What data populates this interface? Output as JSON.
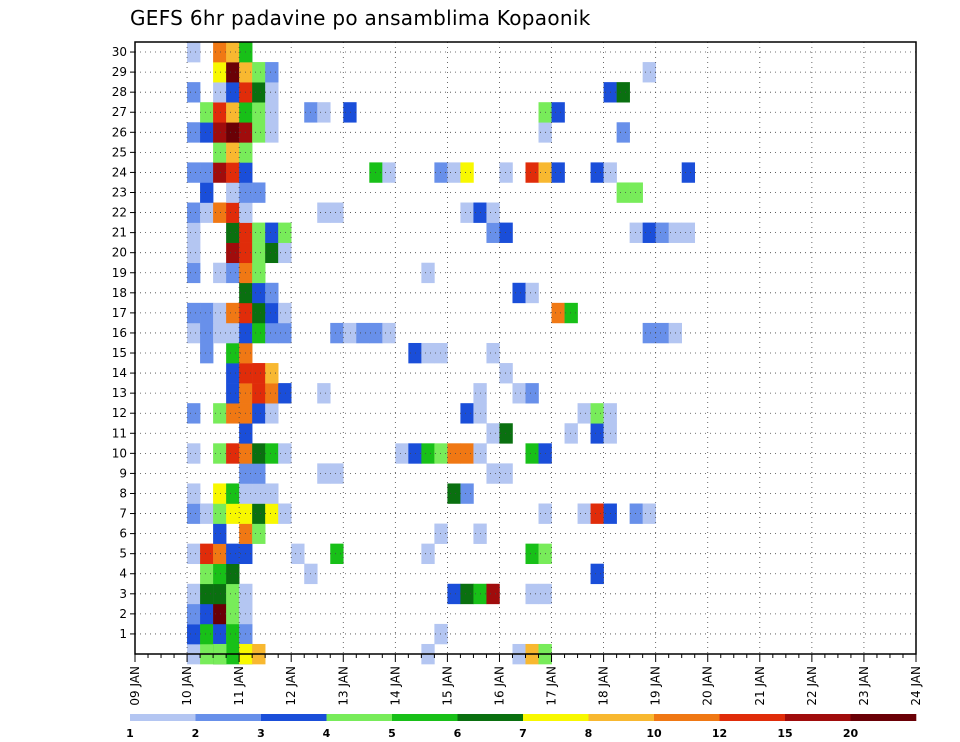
{
  "chart_data": {
    "type": "heatmap",
    "title": "GEFS 6hr padavine po ansamblima Kopaonik",
    "x_start": "09 JAN",
    "x_ticks": [
      "09 JAN",
      "10 JAN",
      "11 JAN",
      "12 JAN",
      "13 JAN",
      "14 JAN",
      "15 JAN",
      "16 JAN",
      "17 JAN",
      "18 JAN",
      "19 JAN",
      "20 JAN",
      "21 JAN",
      "22 JAN",
      "23 JAN",
      "24 JAN"
    ],
    "x_step_hours": 6,
    "y_ticks": [
      "1",
      "2",
      "3",
      "4",
      "5",
      "6",
      "7",
      "8",
      "9",
      "10",
      "11",
      "12",
      "13",
      "14",
      "15",
      "16",
      "17",
      "18",
      "19",
      "20",
      "21",
      "22",
      "23",
      "24",
      "25",
      "26",
      "27",
      "28",
      "29",
      "30"
    ],
    "ylim": [
      0,
      30
    ],
    "grid": true,
    "colorbar": {
      "position": "bottom",
      "labels": [
        "1",
        "2",
        "3",
        "4",
        "5",
        "6",
        "7",
        "8",
        "10",
        "12",
        "15",
        "20"
      ],
      "colors": [
        "#b4c6f2",
        "#6890ea",
        "#1a4ed9",
        "#78ec5a",
        "#18c018",
        "#0a7010",
        "#f8f800",
        "#f8b830",
        "#f07814",
        "#e02c0a",
        "#a00c0c",
        "#6a0006"
      ]
    },
    "cells": [
      [
        4,
        0,
        0
      ],
      [
        5,
        0,
        3
      ],
      [
        6,
        0,
        5
      ],
      [
        7,
        0,
        4
      ],
      [
        8,
        0,
        2
      ],
      [
        22,
        0,
        0
      ],
      [
        4,
        1,
        1
      ],
      [
        4,
        1,
        2
      ],
      [
        5,
        1,
        4
      ],
      [
        6,
        1,
        2
      ],
      [
        7,
        1,
        4
      ],
      [
        8,
        1,
        1
      ],
      [
        23,
        1,
        0
      ],
      [
        4,
        2,
        0
      ],
      [
        4,
        2,
        1
      ],
      [
        5,
        2,
        2
      ],
      [
        6,
        2,
        11
      ],
      [
        7,
        2,
        3
      ],
      [
        8,
        2,
        0
      ],
      [
        4,
        3,
        0
      ],
      [
        5,
        3,
        5
      ],
      [
        6,
        3,
        5
      ],
      [
        7,
        3,
        3
      ],
      [
        8,
        3,
        0
      ],
      [
        24,
        3,
        2
      ],
      [
        25,
        3,
        5
      ],
      [
        26,
        3,
        4
      ],
      [
        27,
        3,
        10
      ],
      [
        30,
        3,
        0
      ],
      [
        31,
        3,
        0
      ],
      [
        5,
        4,
        3
      ],
      [
        6,
        4,
        4
      ],
      [
        7,
        4,
        5
      ],
      [
        13,
        4,
        0
      ],
      [
        35,
        4,
        2
      ],
      [
        4,
        5,
        0
      ],
      [
        5,
        5,
        9
      ],
      [
        6,
        5,
        8
      ],
      [
        7,
        5,
        2
      ],
      [
        8,
        5,
        2
      ],
      [
        12,
        5,
        0
      ],
      [
        15,
        5,
        4
      ],
      [
        22,
        5,
        0
      ],
      [
        30,
        5,
        4
      ],
      [
        31,
        5,
        3
      ],
      [
        6,
        6,
        2
      ],
      [
        8,
        6,
        8
      ],
      [
        9,
        6,
        3
      ],
      [
        23,
        6,
        0
      ],
      [
        26,
        6,
        0
      ],
      [
        4,
        7,
        1
      ],
      [
        5,
        7,
        0
      ],
      [
        6,
        7,
        3
      ],
      [
        7,
        7,
        6
      ],
      [
        8,
        7,
        6
      ],
      [
        9,
        7,
        5
      ],
      [
        10,
        7,
        6
      ],
      [
        11,
        7,
        0
      ],
      [
        31,
        7,
        0
      ],
      [
        34,
        7,
        0
      ],
      [
        35,
        7,
        9
      ],
      [
        36,
        7,
        2
      ],
      [
        38,
        7,
        1
      ],
      [
        39,
        7,
        0
      ],
      [
        4,
        8,
        0
      ],
      [
        6,
        8,
        6
      ],
      [
        7,
        8,
        4
      ],
      [
        8,
        8,
        0
      ],
      [
        9,
        8,
        0
      ],
      [
        10,
        8,
        0
      ],
      [
        24,
        8,
        5
      ],
      [
        25,
        8,
        1
      ],
      [
        8,
        9,
        1
      ],
      [
        9,
        9,
        1
      ],
      [
        14,
        9,
        0
      ],
      [
        15,
        9,
        0
      ],
      [
        27,
        9,
        0
      ],
      [
        28,
        9,
        0
      ],
      [
        4,
        10,
        0
      ],
      [
        6,
        10,
        3
      ],
      [
        7,
        10,
        9
      ],
      [
        8,
        10,
        8
      ],
      [
        9,
        10,
        5
      ],
      [
        10,
        10,
        4
      ],
      [
        11,
        10,
        0
      ],
      [
        20,
        10,
        0
      ],
      [
        21,
        10,
        2
      ],
      [
        22,
        10,
        4
      ],
      [
        23,
        10,
        3
      ],
      [
        24,
        10,
        8
      ],
      [
        25,
        10,
        8
      ],
      [
        26,
        10,
        0
      ],
      [
        30,
        10,
        4
      ],
      [
        31,
        10,
        2
      ],
      [
        8,
        11,
        2
      ],
      [
        27,
        11,
        0
      ],
      [
        28,
        11,
        5
      ],
      [
        33,
        11,
        0
      ],
      [
        35,
        11,
        2
      ],
      [
        36,
        11,
        0
      ],
      [
        4,
        12,
        1
      ],
      [
        6,
        12,
        3
      ],
      [
        7,
        12,
        8
      ],
      [
        8,
        12,
        8
      ],
      [
        9,
        12,
        2
      ],
      [
        10,
        12,
        0
      ],
      [
        25,
        12,
        2
      ],
      [
        26,
        12,
        0
      ],
      [
        34,
        12,
        0
      ],
      [
        35,
        12,
        3
      ],
      [
        36,
        12,
        0
      ],
      [
        7,
        13,
        2
      ],
      [
        8,
        13,
        8
      ],
      [
        9,
        13,
        9
      ],
      [
        10,
        13,
        8
      ],
      [
        11,
        13,
        2
      ],
      [
        14,
        13,
        0
      ],
      [
        26,
        13,
        0
      ],
      [
        29,
        13,
        0
      ],
      [
        30,
        13,
        1
      ],
      [
        7,
        14,
        2
      ],
      [
        8,
        14,
        9
      ],
      [
        9,
        14,
        9
      ],
      [
        10,
        14,
        7
      ],
      [
        28,
        14,
        0
      ],
      [
        5,
        15,
        1
      ],
      [
        7,
        15,
        4
      ],
      [
        8,
        15,
        8
      ],
      [
        21,
        15,
        2
      ],
      [
        22,
        15,
        0
      ],
      [
        23,
        15,
        0
      ],
      [
        27,
        15,
        0
      ],
      [
        4,
        16,
        0
      ],
      [
        5,
        16,
        1
      ],
      [
        6,
        16,
        0
      ],
      [
        7,
        16,
        0
      ],
      [
        8,
        16,
        2
      ],
      [
        9,
        16,
        4
      ],
      [
        10,
        16,
        1
      ],
      [
        11,
        16,
        1
      ],
      [
        15,
        16,
        1
      ],
      [
        16,
        16,
        0
      ],
      [
        17,
        16,
        1
      ],
      [
        18,
        16,
        1
      ],
      [
        19,
        16,
        0
      ],
      [
        39,
        16,
        1
      ],
      [
        40,
        16,
        1
      ],
      [
        41,
        16,
        0
      ],
      [
        4,
        17,
        1
      ],
      [
        5,
        17,
        1
      ],
      [
        6,
        17,
        0
      ],
      [
        7,
        17,
        8
      ],
      [
        8,
        17,
        9
      ],
      [
        9,
        17,
        5
      ],
      [
        10,
        17,
        2
      ],
      [
        11,
        17,
        0
      ],
      [
        32,
        17,
        8
      ],
      [
        33,
        17,
        4
      ],
      [
        8,
        18,
        5
      ],
      [
        9,
        18,
        2
      ],
      [
        10,
        18,
        1
      ],
      [
        29,
        18,
        2
      ],
      [
        30,
        18,
        0
      ],
      [
        4,
        19,
        1
      ],
      [
        6,
        19,
        0
      ],
      [
        7,
        19,
        1
      ],
      [
        8,
        19,
        8
      ],
      [
        9,
        19,
        3
      ],
      [
        22,
        19,
        0
      ],
      [
        4,
        20,
        0
      ],
      [
        7,
        20,
        10
      ],
      [
        8,
        20,
        9
      ],
      [
        9,
        20,
        3
      ],
      [
        10,
        20,
        5
      ],
      [
        11,
        20,
        0
      ],
      [
        4,
        21,
        0
      ],
      [
        7,
        21,
        5
      ],
      [
        8,
        21,
        9
      ],
      [
        9,
        21,
        3
      ],
      [
        10,
        21,
        2
      ],
      [
        11,
        21,
        3
      ],
      [
        27,
        21,
        1
      ],
      [
        28,
        21,
        2
      ],
      [
        38,
        21,
        0
      ],
      [
        39,
        21,
        2
      ],
      [
        40,
        21,
        1
      ],
      [
        41,
        21,
        0
      ],
      [
        42,
        21,
        0
      ],
      [
        4,
        22,
        1
      ],
      [
        5,
        22,
        0
      ],
      [
        6,
        22,
        8
      ],
      [
        7,
        22,
        9
      ],
      [
        8,
        22,
        0
      ],
      [
        14,
        22,
        0
      ],
      [
        15,
        22,
        0
      ],
      [
        25,
        22,
        0
      ],
      [
        26,
        22,
        2
      ],
      [
        27,
        22,
        0
      ],
      [
        5,
        23,
        2
      ],
      [
        7,
        23,
        0
      ],
      [
        8,
        23,
        1
      ],
      [
        9,
        23,
        1
      ],
      [
        37,
        23,
        3
      ],
      [
        38,
        23,
        3
      ],
      [
        4,
        24,
        1
      ],
      [
        5,
        24,
        1
      ],
      [
        6,
        24,
        10
      ],
      [
        7,
        24,
        9
      ],
      [
        8,
        24,
        2
      ],
      [
        18,
        24,
        4
      ],
      [
        19,
        24,
        0
      ],
      [
        23,
        24,
        1
      ],
      [
        24,
        24,
        0
      ],
      [
        25,
        24,
        6
      ],
      [
        28,
        24,
        0
      ],
      [
        30,
        24,
        9
      ],
      [
        31,
        24,
        7
      ],
      [
        32,
        24,
        2
      ],
      [
        35,
        24,
        2
      ],
      [
        36,
        24,
        0
      ],
      [
        42,
        24,
        2
      ],
      [
        6,
        25,
        3
      ],
      [
        7,
        25,
        7
      ],
      [
        8,
        25,
        3
      ],
      [
        4,
        26,
        1
      ],
      [
        5,
        26,
        2
      ],
      [
        6,
        26,
        10
      ],
      [
        7,
        26,
        11
      ],
      [
        8,
        26,
        10
      ],
      [
        9,
        26,
        3
      ],
      [
        10,
        26,
        0
      ],
      [
        31,
        26,
        0
      ],
      [
        37,
        26,
        1
      ],
      [
        5,
        27,
        3
      ],
      [
        6,
        27,
        9
      ],
      [
        7,
        27,
        7
      ],
      [
        8,
        27,
        4
      ],
      [
        9,
        27,
        3
      ],
      [
        10,
        27,
        0
      ],
      [
        13,
        27,
        1
      ],
      [
        14,
        27,
        0
      ],
      [
        16,
        27,
        2
      ],
      [
        31,
        27,
        3
      ],
      [
        32,
        27,
        2
      ],
      [
        4,
        28,
        1
      ],
      [
        6,
        28,
        0
      ],
      [
        7,
        28,
        2
      ],
      [
        8,
        28,
        9
      ],
      [
        9,
        28,
        5
      ],
      [
        10,
        28,
        0
      ],
      [
        36,
        28,
        2
      ],
      [
        37,
        28,
        5
      ],
      [
        6,
        29,
        6
      ],
      [
        7,
        29,
        11
      ],
      [
        8,
        29,
        7
      ],
      [
        9,
        29,
        3
      ],
      [
        10,
        29,
        1
      ],
      [
        39,
        29,
        0
      ],
      [
        4,
        30,
        0
      ],
      [
        6,
        30,
        8
      ],
      [
        7,
        30,
        7
      ],
      [
        8,
        30,
        4
      ],
      [
        6,
        0,
        3
      ],
      [
        8,
        0,
        6
      ],
      [
        9,
        0,
        7
      ],
      [
        29,
        0,
        0
      ],
      [
        30,
        0,
        7
      ],
      [
        31,
        0,
        3
      ]
    ]
  }
}
